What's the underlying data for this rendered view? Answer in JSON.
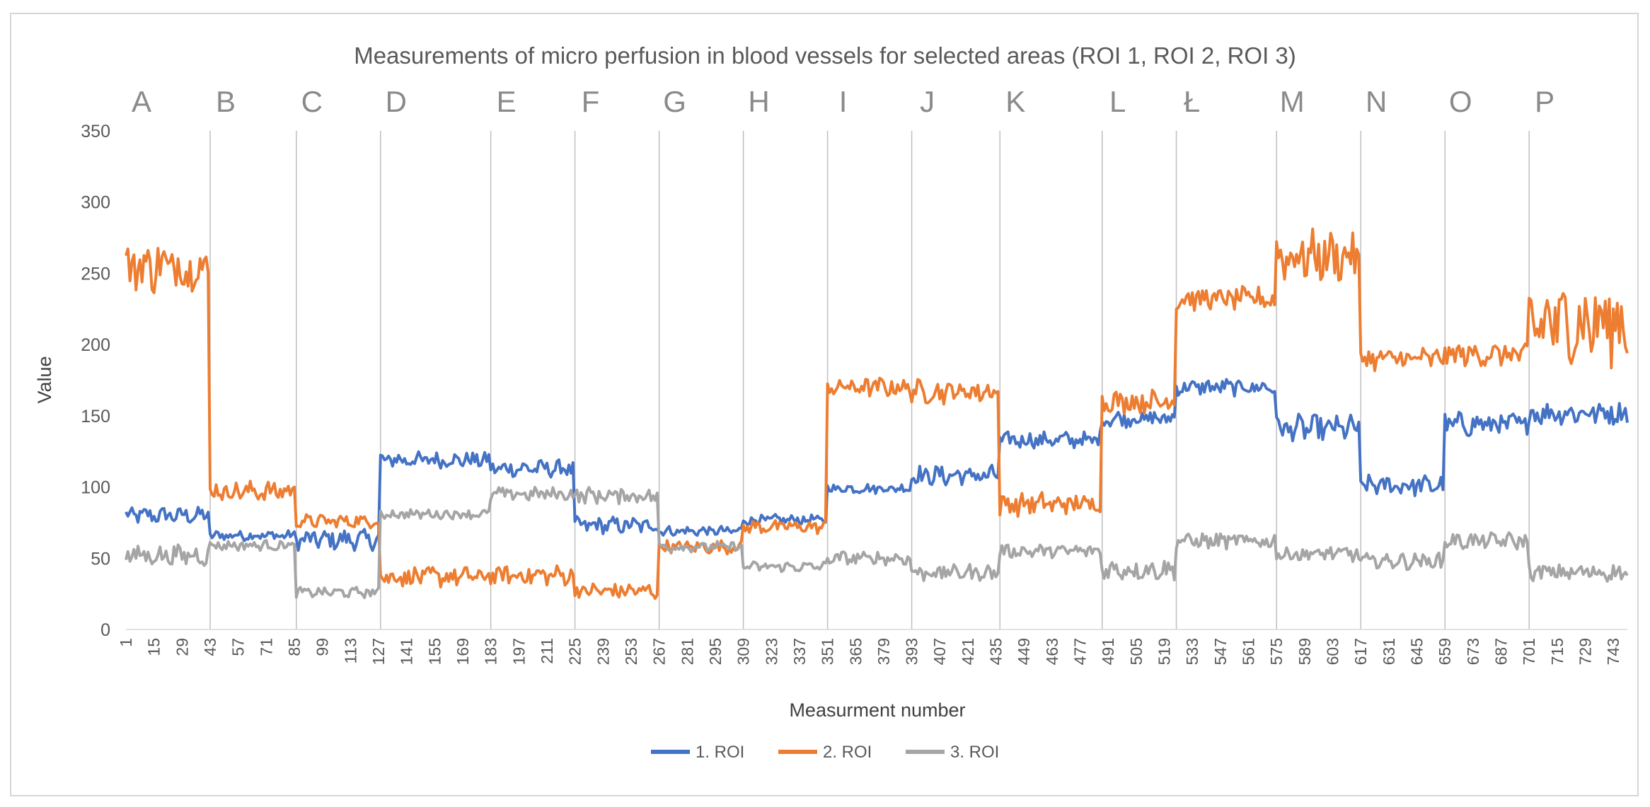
{
  "chart_data": {
    "type": "line",
    "title": "Measurements of micro perfusion in blood vessels for selected areas (ROI 1, ROI 2, ROI 3)",
    "xlabel": "Measurment number",
    "ylabel": "Value",
    "ylim": [
      0,
      350
    ],
    "yticks": [
      0,
      50,
      100,
      150,
      200,
      250,
      300,
      350
    ],
    "xlim": [
      1,
      750
    ],
    "xticks": [
      1,
      15,
      29,
      43,
      57,
      71,
      85,
      99,
      113,
      127,
      141,
      155,
      169,
      183,
      197,
      211,
      225,
      239,
      253,
      267,
      281,
      295,
      309,
      323,
      337,
      351,
      365,
      379,
      393,
      407,
      421,
      435,
      449,
      463,
      477,
      491,
      505,
      519,
      533,
      547,
      561,
      575,
      589,
      603,
      617,
      631,
      645,
      659,
      673,
      687,
      701,
      715,
      729,
      743
    ],
    "grid": "vertical section lines",
    "legend_position": "bottom",
    "sections": [
      {
        "label": "A",
        "start": 1
      },
      {
        "label": "B",
        "start": 43
      },
      {
        "label": "C",
        "start": 86
      },
      {
        "label": "D",
        "start": 128
      },
      {
        "label": "E",
        "start": 183
      },
      {
        "label": "F",
        "start": 225
      },
      {
        "label": "G",
        "start": 267
      },
      {
        "label": "H",
        "start": 309
      },
      {
        "label": "I",
        "start": 351
      },
      {
        "label": "J",
        "start": 393
      },
      {
        "label": "K",
        "start": 437
      },
      {
        "label": "L",
        "start": 488
      },
      {
        "label": "Ł",
        "start": 525
      },
      {
        "label": "M",
        "start": 575
      },
      {
        "label": "N",
        "start": 617
      },
      {
        "label": "O",
        "start": 659
      },
      {
        "label": "P",
        "start": 701
      }
    ],
    "series": [
      {
        "name": "1. ROI",
        "color": "#4472C4",
        "segments": [
          {
            "start": 1,
            "end": 42,
            "mean": 80,
            "noise": 5
          },
          {
            "start": 43,
            "end": 85,
            "mean": 66,
            "noise": 3
          },
          {
            "start": 86,
            "end": 127,
            "mean": 63,
            "noise": 6
          },
          {
            "start": 128,
            "end": 182,
            "mean": 119,
            "noise": 5
          },
          {
            "start": 183,
            "end": 224,
            "mean": 113,
            "noise": 5
          },
          {
            "start": 225,
            "end": 266,
            "mean": 73,
            "noise": 5
          },
          {
            "start": 267,
            "end": 308,
            "mean": 69,
            "noise": 3
          },
          {
            "start": 309,
            "end": 350,
            "mean": 77,
            "noise": 3
          },
          {
            "start": 351,
            "end": 392,
            "mean": 99,
            "noise": 3
          },
          {
            "start": 393,
            "end": 436,
            "mean": 108,
            "noise": 6
          },
          {
            "start": 437,
            "end": 487,
            "mean": 133,
            "noise": 5
          },
          {
            "start": 488,
            "end": 524,
            "mean": 148,
            "noise": 5
          },
          {
            "start": 525,
            "end": 574,
            "mean": 170,
            "noise": 5
          },
          {
            "start": 575,
            "end": 616,
            "mean": 141,
            "noise": 8
          },
          {
            "start": 617,
            "end": 658,
            "mean": 101,
            "noise": 6
          },
          {
            "start": 659,
            "end": 700,
            "mean": 144,
            "noise": 7
          },
          {
            "start": 701,
            "end": 750,
            "mean": 152,
            "noise": 7
          }
        ]
      },
      {
        "name": "2. ROI",
        "color": "#ED7D31",
        "segments": [
          {
            "start": 1,
            "end": 42,
            "mean": 255,
            "noise": 16
          },
          {
            "start": 43,
            "end": 85,
            "mean": 97,
            "noise": 6
          },
          {
            "start": 86,
            "end": 127,
            "mean": 76,
            "noise": 4
          },
          {
            "start": 128,
            "end": 182,
            "mean": 37,
            "noise": 6
          },
          {
            "start": 183,
            "end": 224,
            "mean": 38,
            "noise": 6
          },
          {
            "start": 225,
            "end": 266,
            "mean": 27,
            "noise": 5
          },
          {
            "start": 267,
            "end": 308,
            "mean": 58,
            "noise": 4
          },
          {
            "start": 309,
            "end": 350,
            "mean": 72,
            "noise": 4
          },
          {
            "start": 351,
            "end": 392,
            "mean": 170,
            "noise": 6
          },
          {
            "start": 393,
            "end": 436,
            "mean": 167,
            "noise": 7
          },
          {
            "start": 437,
            "end": 487,
            "mean": 88,
            "noise": 7
          },
          {
            "start": 488,
            "end": 524,
            "mean": 160,
            "noise": 7
          },
          {
            "start": 525,
            "end": 574,
            "mean": 232,
            "noise": 7
          },
          {
            "start": 575,
            "end": 616,
            "mean": 262,
            "noise": 15
          },
          {
            "start": 617,
            "end": 658,
            "mean": 190,
            "noise": 7
          },
          {
            "start": 659,
            "end": 700,
            "mean": 193,
            "noise": 7
          },
          {
            "start": 701,
            "end": 750,
            "mean": 215,
            "noise": 25
          }
        ]
      },
      {
        "name": "3. ROI",
        "color": "#A5A5A5",
        "segments": [
          {
            "start": 1,
            "end": 42,
            "mean": 52,
            "noise": 6
          },
          {
            "start": 43,
            "end": 85,
            "mean": 59,
            "noise": 3
          },
          {
            "start": 86,
            "end": 127,
            "mean": 26,
            "noise": 3
          },
          {
            "start": 128,
            "end": 182,
            "mean": 81,
            "noise": 3
          },
          {
            "start": 183,
            "end": 224,
            "mean": 95,
            "noise": 4
          },
          {
            "start": 225,
            "end": 266,
            "mean": 94,
            "noise": 5
          },
          {
            "start": 267,
            "end": 308,
            "mean": 58,
            "noise": 3
          },
          {
            "start": 309,
            "end": 350,
            "mean": 44,
            "noise": 3
          },
          {
            "start": 351,
            "end": 392,
            "mean": 50,
            "noise": 4
          },
          {
            "start": 393,
            "end": 436,
            "mean": 40,
            "noise": 5
          },
          {
            "start": 437,
            "end": 487,
            "mean": 55,
            "noise": 4
          },
          {
            "start": 488,
            "end": 524,
            "mean": 42,
            "noise": 6
          },
          {
            "start": 525,
            "end": 574,
            "mean": 62,
            "noise": 5
          },
          {
            "start": 575,
            "end": 616,
            "mean": 53,
            "noise": 5
          },
          {
            "start": 617,
            "end": 658,
            "mean": 48,
            "noise": 5
          },
          {
            "start": 659,
            "end": 700,
            "mean": 62,
            "noise": 5
          },
          {
            "start": 701,
            "end": 750,
            "mean": 40,
            "noise": 5
          }
        ]
      }
    ]
  }
}
